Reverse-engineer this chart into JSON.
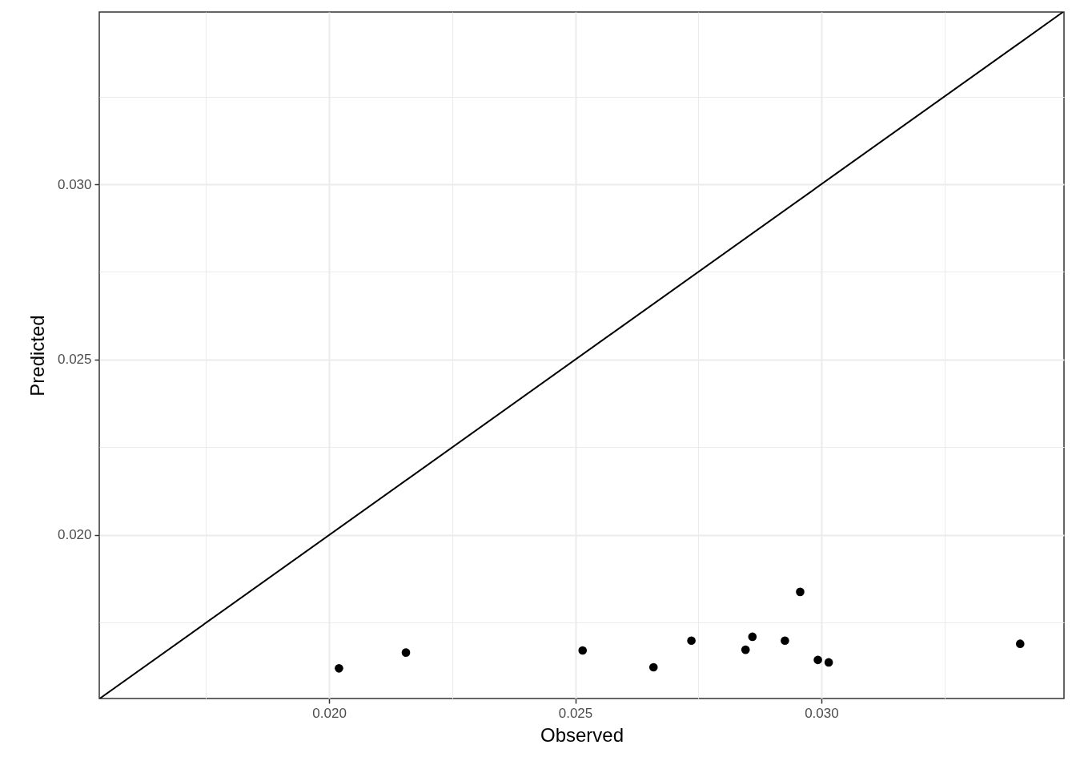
{
  "chart_data": {
    "type": "scatter",
    "xlabel": "Observed",
    "ylabel": "Predicted",
    "xlim": [
      0.01533,
      0.03493
    ],
    "ylim": [
      0.01534,
      0.03491
    ],
    "xticks": [
      {
        "value": 0.0175,
        "label": null
      },
      {
        "value": 0.02,
        "label": "0.020"
      },
      {
        "value": 0.0225,
        "label": null
      },
      {
        "value": 0.025,
        "label": "0.025"
      },
      {
        "value": 0.0275,
        "label": null
      },
      {
        "value": 0.03,
        "label": "0.030"
      },
      {
        "value": 0.0325,
        "label": null
      }
    ],
    "yticks": [
      {
        "value": 0.0175,
        "label": null
      },
      {
        "value": 0.02,
        "label": "0.020"
      },
      {
        "value": 0.0225,
        "label": null
      },
      {
        "value": 0.025,
        "label": "0.025"
      },
      {
        "value": 0.0275,
        "label": null
      },
      {
        "value": 0.03,
        "label": "0.030"
      },
      {
        "value": 0.0325,
        "label": null
      }
    ],
    "grid": true,
    "series": [
      {
        "color": "#000000",
        "marker": "circle",
        "x": [
          0.0202,
          0.02156,
          0.02515,
          0.02659,
          0.02736,
          0.02846,
          0.0286,
          0.02926,
          0.02957,
          0.02993,
          0.03015,
          0.03404
        ],
        "values": [
          0.0162,
          0.01665,
          0.01671,
          0.01623,
          0.01699,
          0.01673,
          0.0171,
          0.01699,
          0.01838,
          0.01644,
          0.01637,
          0.0169
        ]
      },
      {
        "type": "line",
        "color": "#000000",
        "line_style": "solid",
        "x": [
          0.01534,
          0.03491
        ],
        "values": [
          0.01534,
          0.03491
        ]
      }
    ]
  }
}
